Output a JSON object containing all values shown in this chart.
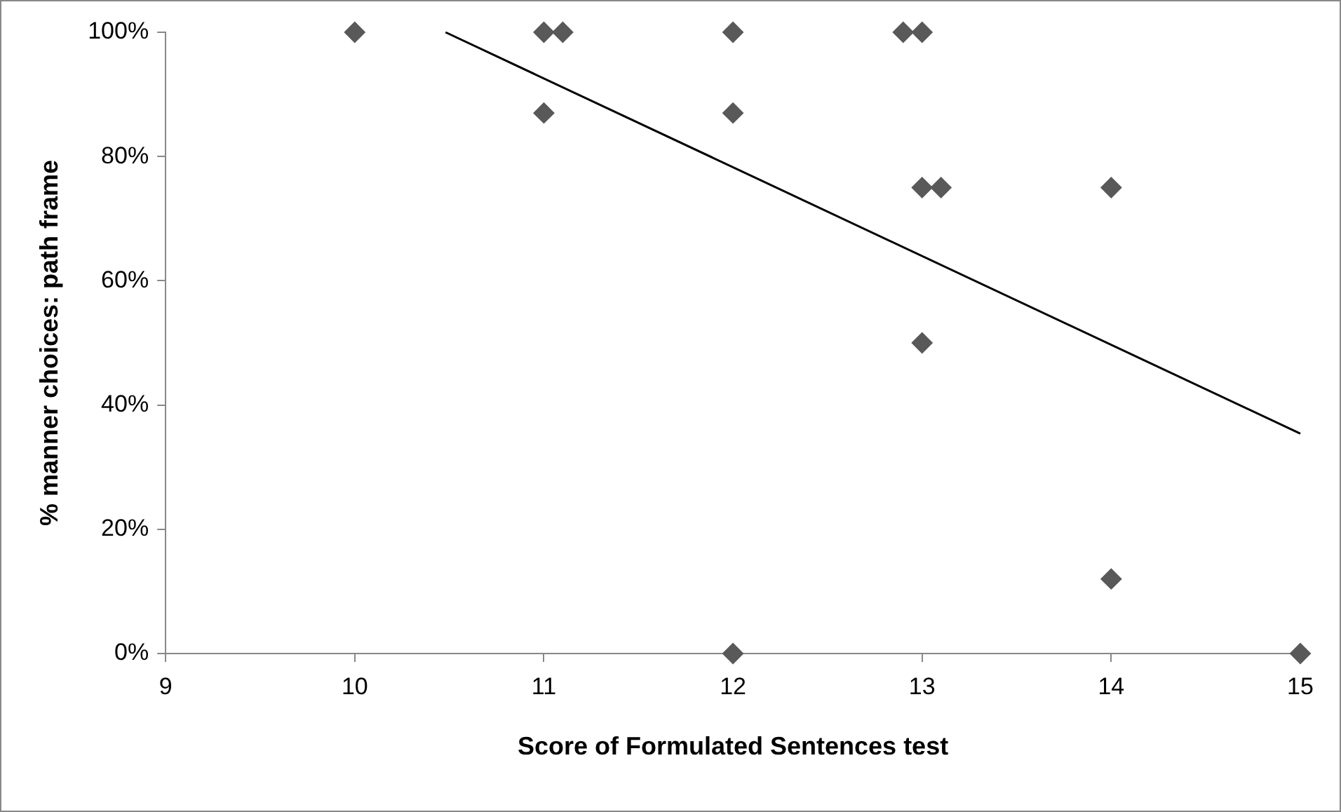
{
  "chart_data": {
    "type": "scatter",
    "xlabel": "Score of Formulated Sentences test",
    "ylabel": "% manner choices: path frame",
    "series": [
      {
        "type": "scatter",
        "color": "#595959",
        "marker": "diamond",
        "x": [
          10,
          11,
          11.1,
          11,
          12,
          12,
          12,
          12.9,
          13,
          13,
          13.1,
          13,
          14,
          14,
          15
        ],
        "values": [
          100,
          100,
          100,
          87,
          100,
          87,
          0,
          100,
          100,
          75,
          75,
          50,
          75,
          12,
          0
        ]
      },
      {
        "type": "line",
        "color": "#000000",
        "marker": "none",
        "x": [
          10.48,
          15
        ],
        "values": [
          100,
          35.4
        ]
      }
    ],
    "xlim": [
      9,
      15
    ],
    "xticks": [
      9,
      10,
      11,
      12,
      13,
      14,
      15
    ],
    "ylim": [
      0,
      100
    ],
    "yticks": [
      {
        "value": 0,
        "label": "0%"
      },
      {
        "value": 20,
        "label": "20%"
      },
      {
        "value": 40,
        "label": "40%"
      },
      {
        "value": 60,
        "label": "60%"
      },
      {
        "value": 80,
        "label": "80%"
      },
      {
        "value": 100,
        "label": "100%"
      }
    ],
    "grid": false,
    "legend": false
  }
}
